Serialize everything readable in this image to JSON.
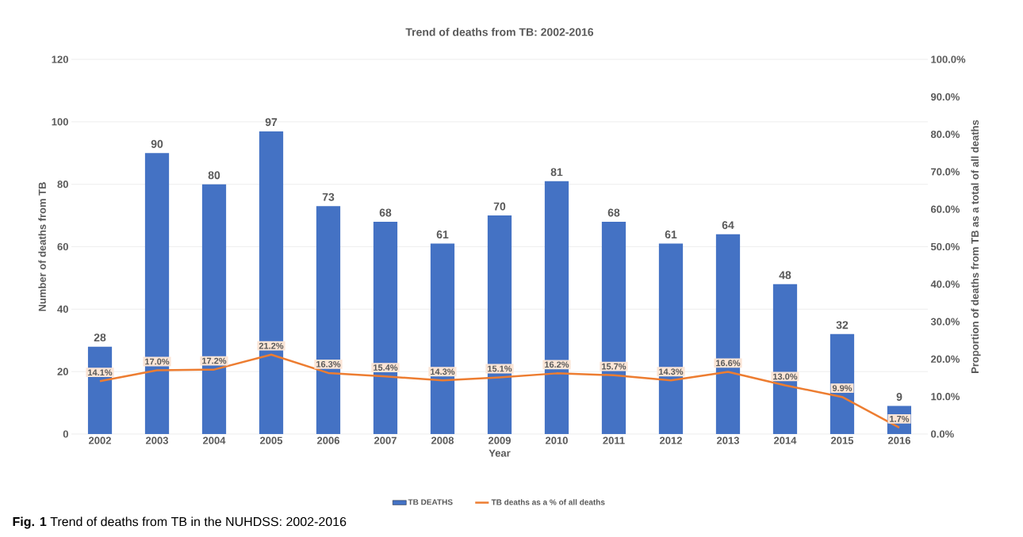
{
  "chart_data": {
    "type": "bar",
    "title": "Trend of  deaths from TB: 2002-2016",
    "xlabel": "Year",
    "ylabel": "Number  of deaths from TB",
    "y2label": "Proportion of  deaths from TB as a total of all deaths",
    "categories": [
      "2002",
      "2003",
      "2004",
      "2005",
      "2006",
      "2007",
      "2008",
      "2009",
      "2010",
      "2011",
      "2012",
      "2013",
      "2014",
      "2015",
      "2016"
    ],
    "series": [
      {
        "name": "TB DEATHS",
        "color": "#4472c4",
        "values": [
          28,
          90,
          80,
          97,
          73,
          68,
          61,
          70,
          81,
          68,
          61,
          64,
          48,
          32,
          9
        ],
        "value_labels": [
          "28",
          "90",
          "80",
          "97",
          "73",
          "68",
          "61",
          "70",
          "81",
          "68",
          "61",
          "64",
          "48",
          "32",
          "9"
        ]
      },
      {
        "name": "TB deaths as a % of all deaths",
        "type": "line",
        "axis": "y2",
        "color": "#ed7d31",
        "values": [
          14.1,
          17.0,
          17.2,
          21.2,
          16.3,
          15.4,
          14.3,
          15.1,
          16.2,
          15.7,
          14.3,
          16.6,
          13.0,
          9.9,
          1.7
        ],
        "value_labels": [
          "14.1%",
          "17.0%",
          "17.2%",
          "21.2%",
          "16.3%",
          "15.4%",
          "14.3%",
          "15.1%",
          "16.2%",
          "15.7%",
          "14.3%",
          "16.6%",
          "13.0%",
          "9.9%",
          "1.7%"
        ]
      }
    ],
    "ylim": [
      0,
      120
    ],
    "yticks": [
      0,
      20,
      40,
      60,
      80,
      100,
      120
    ],
    "y2lim": [
      0,
      100
    ],
    "y2ticks": [
      {
        "value": 0,
        "label": "0.0%"
      },
      {
        "value": 10,
        "label": "10.0%"
      },
      {
        "value": 20,
        "label": "20.0%"
      },
      {
        "value": 30,
        "label": "30.0%"
      },
      {
        "value": 40,
        "label": "40.0%"
      },
      {
        "value": 50,
        "label": "50.0%"
      },
      {
        "value": 60,
        "label": "60.0%"
      },
      {
        "value": 70,
        "label": "70.0%"
      },
      {
        "value": 80,
        "label": "80.0%"
      },
      {
        "value": 90,
        "label": "90.0%"
      },
      {
        "value": 100,
        "label": "100.0%"
      }
    ],
    "grid": "y",
    "legend": "bottom",
    "annotations": [
      "**Fig. 1** Trend of deaths from TB in the NUHDSS: 2002-2016"
    ]
  }
}
